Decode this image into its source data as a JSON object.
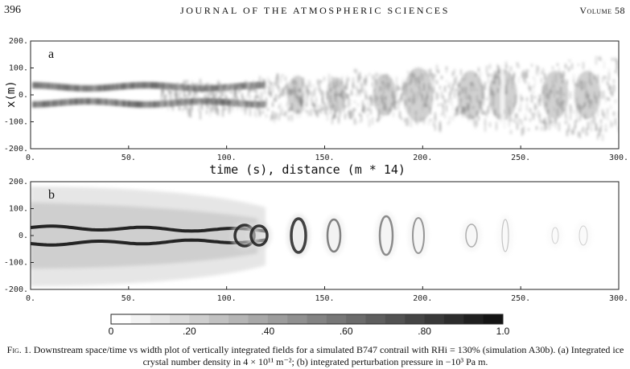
{
  "header": {
    "page_number": "396",
    "journal": "JOURNAL OF THE ATMOSPHERIC SCIENCES",
    "volume": "Volume 58"
  },
  "figure": {
    "x_ticks": [
      "0.",
      "50.",
      "100.",
      "150.",
      "200.",
      "250.",
      "300."
    ],
    "y_ticks": [
      "200.",
      "100.",
      "0.",
      "-100.",
      "-200."
    ],
    "panel_a": {
      "letter": "a",
      "ylabel": "x(m)"
    },
    "panel_b": {
      "letter": "b"
    },
    "shared_xlabel": "time (s), distance (m * 14)",
    "colorbar": {
      "labels": [
        "0",
        ".20",
        ".40",
        ".60",
        ".80",
        "1.0"
      ]
    }
  },
  "caption": {
    "label": "Fig. 1.",
    "text": "Downstream space/time vs width plot of vertically integrated fields for a simulated B747 contrail with RHi = 130% (simulation A30b). (a) Integrated ice crystal number density in 4 × 10¹¹ m⁻²; (b) integrated perturbation pressure in −10³ Pa m."
  }
}
